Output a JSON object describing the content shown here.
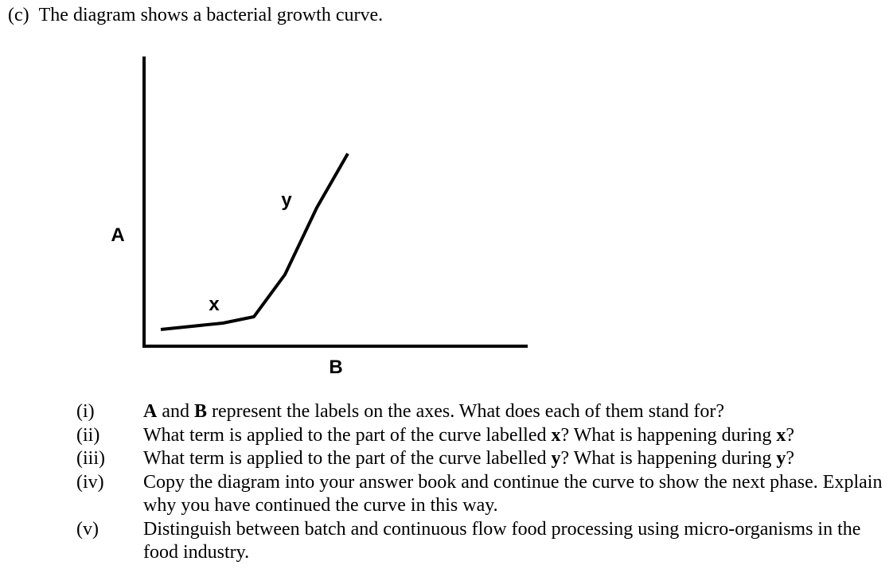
{
  "intro": {
    "part": "(c)",
    "text": "The diagram shows a bacterial growth curve."
  },
  "diagram": {
    "y_axis_label": "A",
    "x_axis_label": "B",
    "segment_labels": {
      "x": "x",
      "y": "y"
    }
  },
  "questions": [
    {
      "number": "(i)",
      "segments": [
        {
          "text": "A",
          "bold": true
        },
        {
          "text": " and ",
          "bold": false
        },
        {
          "text": "B",
          "bold": true
        },
        {
          "text": " represent the labels on the axes.  What does each of them stand for?",
          "bold": false
        }
      ]
    },
    {
      "number": "(ii)",
      "segments": [
        {
          "text": "What term is applied to the part of the curve labelled ",
          "bold": false
        },
        {
          "text": "x",
          "bold": true
        },
        {
          "text": "?  What is happening during ",
          "bold": false
        },
        {
          "text": "x",
          "bold": true
        },
        {
          "text": "?",
          "bold": false
        }
      ]
    },
    {
      "number": "(iii)",
      "segments": [
        {
          "text": "What term is applied to the part of the curve labelled ",
          "bold": false
        },
        {
          "text": "y",
          "bold": true
        },
        {
          "text": "?  What is happening during ",
          "bold": false
        },
        {
          "text": "y",
          "bold": true
        },
        {
          "text": "?",
          "bold": false
        }
      ]
    },
    {
      "number": "(iv)",
      "segments": [
        {
          "text": "Copy the diagram into your answer book and continue the curve to show the next phase. Explain why you have continued the curve in this way.",
          "bold": false
        }
      ]
    },
    {
      "number": "(v)",
      "segments": [
        {
          "text": "Distinguish between batch and continuous flow food processing using micro-organisms in the food industry.",
          "bold": false
        }
      ]
    }
  ]
}
